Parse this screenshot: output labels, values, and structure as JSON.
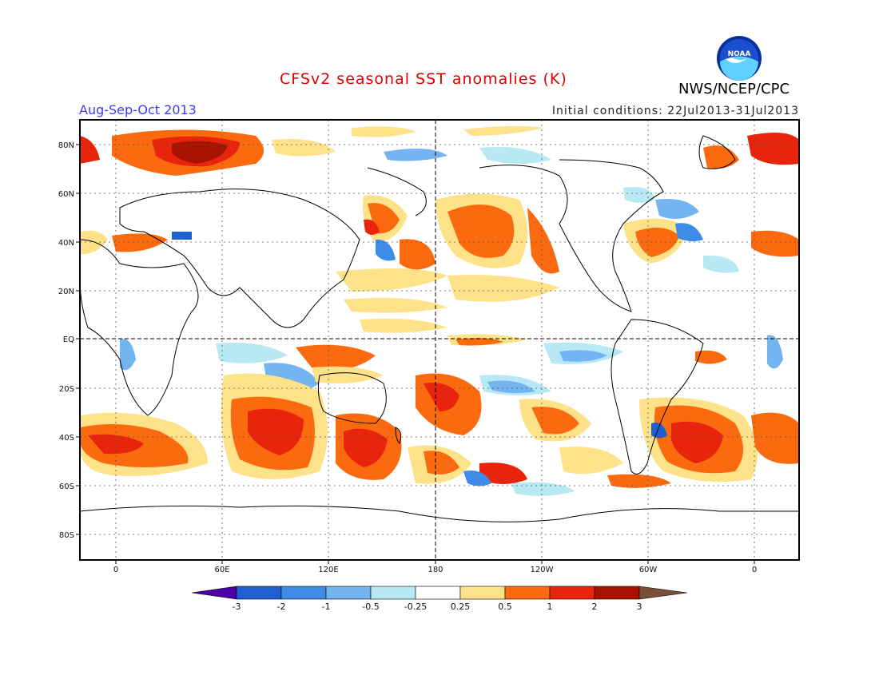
{
  "header": {
    "title": "CFSv2 seasonal SST anomalies (K)",
    "period": "Aug-Sep-Oct 2013",
    "initial_conditions": "Initial conditions: 22Jul2013-31Jul2013",
    "agency": "NWS/NCEP/CPC",
    "logo_text": "NOAA"
  },
  "map": {
    "lat_ticks": [
      "80N",
      "60N",
      "40N",
      "20N",
      "EQ",
      "20S",
      "40S",
      "60S",
      "80S"
    ],
    "lon_ticks": [
      "0",
      "60E",
      "120E",
      "180",
      "120W",
      "60W",
      "0"
    ],
    "projection": "cylindrical equidistant, centered 180"
  },
  "colorbar": {
    "labels": [
      "-3",
      "-2",
      "-1",
      "-0.5",
      "-0.25",
      "0.25",
      "0.5",
      "1",
      "2",
      "3"
    ],
    "colors": [
      "#4b00a6",
      "#1f5fcf",
      "#3f8ce8",
      "#74b4f0",
      "#b8e8f4",
      "#ffffff",
      "#fde28a",
      "#fb6a0e",
      "#e8250c",
      "#aa1200",
      "#7a4f3a"
    ]
  },
  "colors": {
    "title": "#e00000",
    "period": "#3a3aff"
  }
}
